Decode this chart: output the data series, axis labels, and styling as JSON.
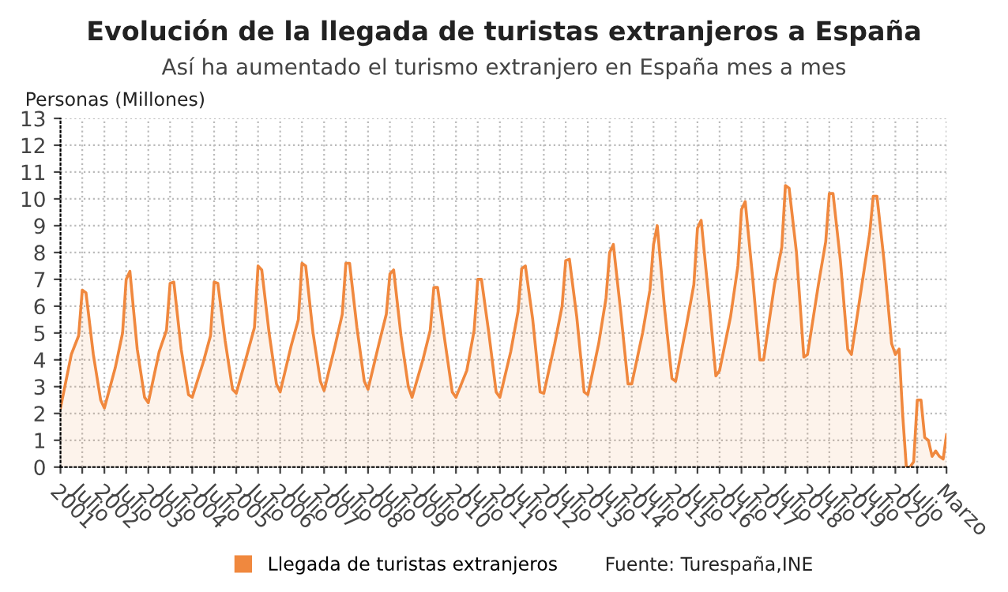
{
  "chart_data": {
    "type": "area",
    "title": "Evolución de la llegada de turistas extranjeros a España",
    "subtitle": "Así ha aumentado el turismo extranjero en España mes a mes",
    "ylabel": "Personas (Millones)",
    "annotations": [
      "Fuente: Turespaña,INE"
    ],
    "x": [
      "2001-01",
      "2001-04",
      "2001-06",
      "2001-07",
      "2001-08",
      "2001-10",
      "2001-12",
      "2002-01",
      "2002-04",
      "2002-06",
      "2002-07",
      "2002-08",
      "2002-10",
      "2002-12",
      "2003-01",
      "2003-04",
      "2003-06",
      "2003-07",
      "2003-08",
      "2003-10",
      "2003-12",
      "2004-01",
      "2004-04",
      "2004-06",
      "2004-07",
      "2004-08",
      "2004-10",
      "2004-12",
      "2005-01",
      "2005-04",
      "2005-06",
      "2005-07",
      "2005-08",
      "2005-10",
      "2005-12",
      "2006-01",
      "2006-04",
      "2006-06",
      "2006-07",
      "2006-08",
      "2006-10",
      "2006-12",
      "2007-01",
      "2007-04",
      "2007-06",
      "2007-07",
      "2007-08",
      "2007-10",
      "2007-12",
      "2008-01",
      "2008-04",
      "2008-06",
      "2008-07",
      "2008-08",
      "2008-10",
      "2008-12",
      "2009-01",
      "2009-04",
      "2009-06",
      "2009-07",
      "2009-08",
      "2009-10",
      "2009-12",
      "2010-01",
      "2010-04",
      "2010-06",
      "2010-07",
      "2010-08",
      "2010-10",
      "2010-12",
      "2011-01",
      "2011-04",
      "2011-06",
      "2011-07",
      "2011-08",
      "2011-10",
      "2011-12",
      "2012-01",
      "2012-04",
      "2012-06",
      "2012-07",
      "2012-08",
      "2012-10",
      "2012-12",
      "2013-01",
      "2013-04",
      "2013-06",
      "2013-07",
      "2013-08",
      "2013-10",
      "2013-12",
      "2014-01",
      "2014-04",
      "2014-06",
      "2014-07",
      "2014-08",
      "2014-10",
      "2014-12",
      "2015-01",
      "2015-04",
      "2015-06",
      "2015-07",
      "2015-08",
      "2015-10",
      "2015-12",
      "2016-01",
      "2016-04",
      "2016-06",
      "2016-07",
      "2016-08",
      "2016-10",
      "2016-12",
      "2017-01",
      "2017-04",
      "2017-06",
      "2017-07",
      "2017-08",
      "2017-10",
      "2017-12",
      "2018-01",
      "2018-04",
      "2018-06",
      "2018-07",
      "2018-08",
      "2018-10",
      "2018-12",
      "2019-01",
      "2019-04",
      "2019-06",
      "2019-07",
      "2019-08",
      "2019-10",
      "2019-12",
      "2020-01",
      "2020-02",
      "2020-03",
      "2020-04",
      "2020-05",
      "2020-06",
      "2020-07",
      "2020-08",
      "2020-09",
      "2020-10",
      "2020-11",
      "2020-12",
      "2021-01",
      "2021-02",
      "2021-03"
    ],
    "series": [
      {
        "name": "Llegada de turistas extranjeros",
        "color": "#f0883e",
        "values": [
          2.2,
          4.2,
          4.9,
          6.6,
          6.5,
          4.2,
          2.5,
          2.2,
          3.7,
          5.0,
          7.0,
          7.3,
          4.4,
          2.6,
          2.4,
          4.3,
          5.1,
          6.85,
          6.9,
          4.4,
          2.7,
          2.6,
          3.9,
          4.9,
          6.9,
          6.85,
          4.7,
          2.9,
          2.75,
          4.2,
          5.2,
          7.5,
          7.35,
          5.0,
          3.1,
          2.8,
          4.5,
          5.5,
          7.6,
          7.5,
          5.0,
          3.2,
          2.85,
          4.5,
          5.7,
          7.6,
          7.6,
          5.2,
          3.2,
          2.9,
          4.6,
          5.7,
          7.2,
          7.35,
          4.9,
          3.0,
          2.6,
          4.0,
          5.1,
          6.7,
          6.7,
          4.7,
          2.8,
          2.6,
          3.6,
          5.1,
          7.0,
          7.0,
          5.0,
          2.8,
          2.6,
          4.3,
          5.8,
          7.4,
          7.5,
          5.5,
          2.8,
          2.75,
          4.6,
          6.0,
          7.7,
          7.75,
          5.6,
          2.8,
          2.7,
          4.6,
          6.3,
          8.0,
          8.3,
          5.8,
          3.1,
          3.1,
          5.0,
          6.6,
          8.3,
          9.0,
          5.9,
          3.3,
          3.2,
          5.3,
          6.8,
          8.9,
          9.2,
          6.4,
          3.4,
          3.6,
          5.6,
          7.5,
          9.6,
          9.9,
          7.1,
          4.0,
          4.0,
          6.8,
          8.2,
          10.5,
          10.4,
          8.0,
          4.1,
          4.2,
          6.8,
          8.4,
          10.2,
          10.2,
          7.7,
          4.4,
          4.2,
          6.9,
          8.7,
          10.1,
          10.1,
          7.6,
          4.6,
          4.2,
          4.4,
          2.0,
          0,
          0,
          0.2,
          2.5,
          2.5,
          1.1,
          1.0,
          0.4,
          0.6,
          0.4,
          0.3,
          1.2
        ]
      }
    ],
    "xlim": [
      "2001-01",
      "2021-03"
    ],
    "xticks": [
      {
        "value": "2001-01",
        "label": "2001"
      },
      {
        "value": "2001-07",
        "label": "Julio"
      },
      {
        "value": "2002-01",
        "label": "2002"
      },
      {
        "value": "2002-07",
        "label": "Julio"
      },
      {
        "value": "2003-01",
        "label": "2003"
      },
      {
        "value": "2003-07",
        "label": "Julio"
      },
      {
        "value": "2004-01",
        "label": "2004"
      },
      {
        "value": "2004-07",
        "label": "Julio"
      },
      {
        "value": "2005-01",
        "label": "2005"
      },
      {
        "value": "2005-07",
        "label": "Julio"
      },
      {
        "value": "2006-01",
        "label": "2006"
      },
      {
        "value": "2006-07",
        "label": "Julio"
      },
      {
        "value": "2007-01",
        "label": "2007"
      },
      {
        "value": "2007-07",
        "label": "Julio"
      },
      {
        "value": "2008-01",
        "label": "2008"
      },
      {
        "value": "2008-07",
        "label": "Julio"
      },
      {
        "value": "2009-01",
        "label": "2009"
      },
      {
        "value": "2009-07",
        "label": "Julio"
      },
      {
        "value": "2010-01",
        "label": "2010"
      },
      {
        "value": "2010-07",
        "label": "Julio"
      },
      {
        "value": "2011-01",
        "label": "2011"
      },
      {
        "value": "2011-07",
        "label": "Julio"
      },
      {
        "value": "2012-01",
        "label": "2012"
      },
      {
        "value": "2012-07",
        "label": "Julio"
      },
      {
        "value": "2013-01",
        "label": "2013"
      },
      {
        "value": "2013-07",
        "label": "Julio"
      },
      {
        "value": "2014-01",
        "label": "2014"
      },
      {
        "value": "2014-07",
        "label": "Julio"
      },
      {
        "value": "2015-01",
        "label": "2015"
      },
      {
        "value": "2015-07",
        "label": "Julio"
      },
      {
        "value": "2016-01",
        "label": "2016"
      },
      {
        "value": "2016-07",
        "label": "Julio"
      },
      {
        "value": "2017-01",
        "label": "2017"
      },
      {
        "value": "2017-07",
        "label": "Julio"
      },
      {
        "value": "2018-01",
        "label": "2018"
      },
      {
        "value": "2018-07",
        "label": "Julio"
      },
      {
        "value": "2019-01",
        "label": "2019"
      },
      {
        "value": "2019-07",
        "label": "Julio"
      },
      {
        "value": "2020-01",
        "label": "2020"
      },
      {
        "value": "2020-07",
        "label": "Julio"
      },
      {
        "value": "2021-03",
        "label": "Marzo"
      }
    ],
    "ylim": [
      0,
      13
    ],
    "yticks": [
      0,
      1,
      2,
      3,
      4,
      5,
      6,
      7,
      8,
      9,
      10,
      11,
      12,
      13
    ],
    "grid": true,
    "legend": "bottom"
  }
}
